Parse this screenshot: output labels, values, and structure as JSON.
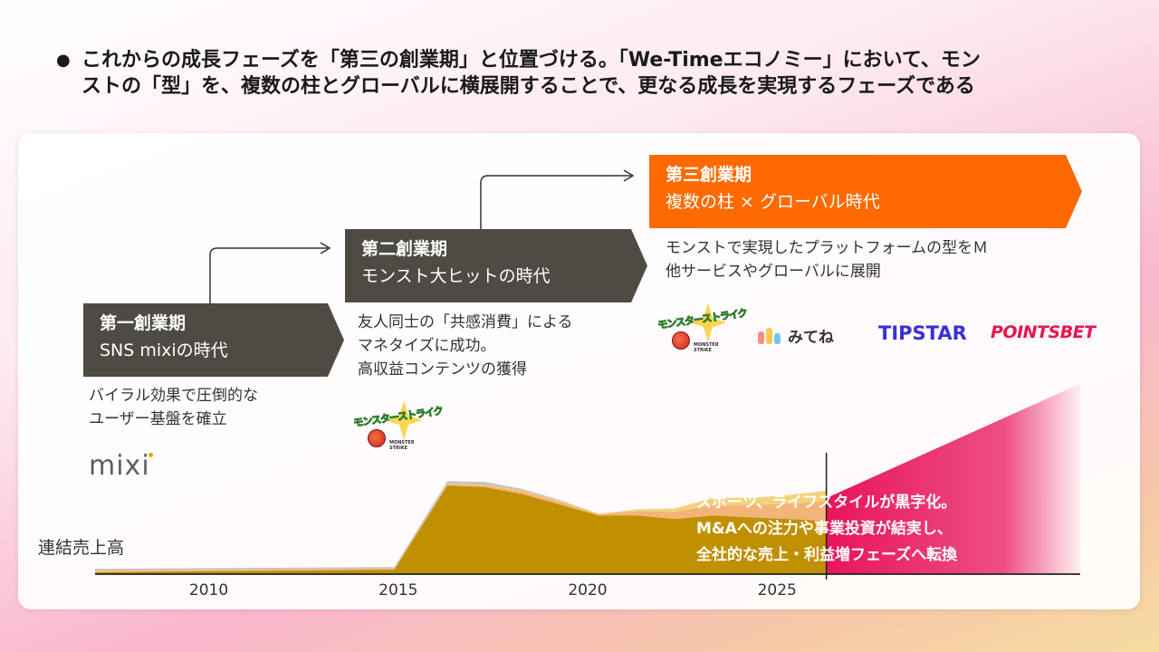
{
  "header": {
    "bullet": "●",
    "line1": "これからの成長フェーズを「第三の創業期」と位置づける。「We-Timeエコノミー」において、モン",
    "line2": "ストの「型」を、複数の柱とグローバルに横展開することで、更なる成長を実現するフェーズである"
  },
  "phases": [
    {
      "title": "第一創業期",
      "subtitle": "SNS mixiの時代",
      "desc": [
        "バイラル効果で圧倒的な",
        "ユーザー基盤を確立"
      ],
      "color": "#4e4a44"
    },
    {
      "title": "第二創業期",
      "subtitle": "モンスト大ヒットの時代",
      "desc": [
        "友人同士の「共感消費」による",
        "マネタイズに成功。",
        "高収益コンテンツの獲得"
      ],
      "color": "#4e4a44"
    },
    {
      "title": "第三創業期",
      "subtitle": "複数の柱 × グローバル時代",
      "desc": [
        "モンストで実現したプラットフォームの型をＭ",
        "他サービスやグローバルに展開"
      ],
      "color": "#ff6a00"
    }
  ],
  "logos": {
    "mixi": "mixi",
    "monst_text": "モンスターストライク",
    "monst_tag": "MONSTER STRIKE",
    "mitene": "みてね",
    "tipstar": "TIPSTAR",
    "pointsbet": "POINTSBET"
  },
  "callout": [
    "スポーツ、ライフスタイルが黒字化。",
    "M&Aへの注力や事業投資が結実し、",
    "全社的な売上・利益増フェーズへ転換"
  ],
  "colors": {
    "accent": "#ff6a00",
    "phase_dark": "#4e4a44",
    "future": "#e8155a",
    "core": "#c09000"
  },
  "chart_data": {
    "type": "area",
    "ylabel": "連結売上高",
    "x_ticks": [
      2010,
      2015,
      2020,
      2025
    ],
    "x_range": [
      2007,
      2033
    ],
    "series": [
      {
        "color": "#c09000",
        "x": [
          2007,
          2014.9,
          2016.3,
          2017.3,
          2018.3,
          2019.3,
          2020.3,
          2021.3,
          2022.3,
          2023.3,
          2024.3,
          2025.3,
          2026.3
        ],
        "values": [
          0.02,
          0.05,
          1.0,
          0.98,
          0.9,
          0.78,
          0.66,
          0.66,
          0.62,
          0.66,
          0.64,
          0.62,
          0.6
        ]
      },
      {
        "color": "#f3b47a",
        "x": [
          2007,
          2014.9,
          2016.3,
          2017.3,
          2018.3,
          2019.3,
          2020.3,
          2021.3,
          2022.3,
          2023.3,
          2024.3,
          2025.3,
          2026.3
        ],
        "values": [
          0.03,
          0.06,
          1.01,
          1.0,
          0.93,
          0.81,
          0.67,
          0.71,
          0.7,
          0.78,
          0.78,
          0.79,
          0.82
        ]
      },
      {
        "color": "#f5d27a",
        "x": [
          2007,
          2014.9,
          2016.3,
          2017.3,
          2018.3,
          2019.3,
          2020.3,
          2021.3,
          2022.3,
          2023.3,
          2024.3,
          2025.3,
          2026.3
        ],
        "values": [
          0.04,
          0.06,
          1.02,
          1.01,
          0.94,
          0.82,
          0.68,
          0.73,
          0.74,
          0.86,
          0.86,
          0.89,
          0.94
        ]
      },
      {
        "color": "#c4c4c4",
        "x": [
          2007,
          2014.9,
          2016.3,
          2017.3,
          2018.3,
          2019.3,
          2020.3,
          2021.3,
          2022.3,
          2023.3,
          2024.3,
          2025.3,
          2026.3
        ],
        "values": [
          0.06,
          0.08,
          1.05,
          1.04,
          0.96,
          0.83,
          0.68,
          0.73,
          0.74,
          0.86,
          0.86,
          0.89,
          0.94
        ]
      }
    ],
    "forecast": {
      "start_x": 2026.3,
      "end_x": 2033,
      "start_value": 0.0,
      "end_value": 2.15,
      "color": "#e8155a"
    },
    "divider_x": 2026.3,
    "ylim": [
      0,
      2.3
    ],
    "grid": false
  }
}
